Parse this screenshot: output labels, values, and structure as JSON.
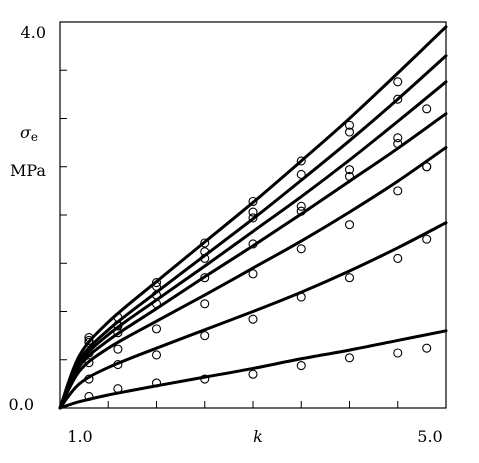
{
  "chart_data": {
    "type": "scatter",
    "title": "",
    "xlabel": "k",
    "ylabel_symbol": "σ",
    "ylabel_subscript": "e",
    "ylabel_unit": "MPa",
    "xlim": [
      1.0,
      5.0
    ],
    "ylim": [
      0.0,
      4.0
    ],
    "x_tick_labels": [
      {
        "value": 1.0,
        "label": "1.0"
      },
      {
        "value": 5.0,
        "label": "5.0"
      }
    ],
    "y_tick_labels": [
      {
        "value": 0.0,
        "label": "0.0"
      },
      {
        "value": 4.0,
        "label": "4.0"
      }
    ],
    "x_minor_ticks": [
      1.5,
      2.0,
      2.5,
      3.0,
      3.5,
      4.0,
      4.5
    ],
    "y_minor_ticks": [
      0.5,
      1.0,
      1.5,
      2.0,
      2.5,
      3.0,
      3.5
    ],
    "grid": false,
    "series": [
      {
        "curve": [
          [
            1.0,
            0.0
          ],
          [
            1.2,
            0.065
          ],
          [
            1.5,
            0.135
          ],
          [
            2.0,
            0.23
          ],
          [
            2.5,
            0.32
          ],
          [
            3.0,
            0.41
          ],
          [
            3.5,
            0.51
          ],
          [
            4.0,
            0.6
          ],
          [
            4.5,
            0.7
          ],
          [
            5.0,
            0.8
          ]
        ],
        "points": [
          [
            1.3,
            0.12
          ],
          [
            1.6,
            0.2
          ],
          [
            2.0,
            0.26
          ],
          [
            2.5,
            0.3
          ],
          [
            3.0,
            0.35
          ],
          [
            3.5,
            0.44
          ],
          [
            4.0,
            0.52
          ],
          [
            4.5,
            0.57
          ],
          [
            4.8,
            0.62
          ]
        ]
      },
      {
        "curve": [
          [
            1.0,
            0.0
          ],
          [
            1.2,
            0.25
          ],
          [
            1.5,
            0.42
          ],
          [
            2.0,
            0.62
          ],
          [
            2.5,
            0.81
          ],
          [
            3.0,
            1.0
          ],
          [
            3.5,
            1.2
          ],
          [
            4.0,
            1.42
          ],
          [
            4.5,
            1.66
          ],
          [
            5.0,
            1.92
          ]
        ],
        "points": [
          [
            1.3,
            0.3
          ],
          [
            1.6,
            0.45
          ],
          [
            2.0,
            0.55
          ],
          [
            2.5,
            0.75
          ],
          [
            3.0,
            0.92
          ],
          [
            3.5,
            1.15
          ],
          [
            4.0,
            1.35
          ],
          [
            4.5,
            1.55
          ],
          [
            4.8,
            1.75
          ]
        ]
      },
      {
        "curve": [
          [
            1.0,
            0.0
          ],
          [
            1.2,
            0.38
          ],
          [
            1.5,
            0.62
          ],
          [
            2.0,
            0.9
          ],
          [
            2.5,
            1.17
          ],
          [
            3.0,
            1.45
          ],
          [
            3.5,
            1.73
          ],
          [
            4.0,
            2.03
          ],
          [
            4.5,
            2.35
          ],
          [
            5.0,
            2.7
          ]
        ],
        "points": [
          [
            1.3,
            0.47
          ],
          [
            1.6,
            0.61
          ],
          [
            2.0,
            0.82
          ],
          [
            2.5,
            1.08
          ],
          [
            3.0,
            1.39
          ],
          [
            3.5,
            1.65
          ],
          [
            4.0,
            1.9
          ],
          [
            4.5,
            2.25
          ],
          [
            4.8,
            2.5
          ]
        ]
      },
      {
        "curve": [
          [
            1.0,
            0.0
          ],
          [
            1.2,
            0.46
          ],
          [
            1.5,
            0.76
          ],
          [
            2.0,
            1.12
          ],
          [
            2.5,
            1.47
          ],
          [
            3.0,
            1.83
          ],
          [
            3.5,
            2.19
          ],
          [
            4.0,
            2.57
          ],
          [
            4.5,
            2.97
          ],
          [
            5.0,
            3.38
          ]
        ],
        "points": [
          [
            1.3,
            0.57
          ],
          [
            1.6,
            0.78
          ],
          [
            2.0,
            1.08
          ],
          [
            2.5,
            1.35
          ],
          [
            3.0,
            1.7
          ],
          [
            3.5,
            2.04
          ],
          [
            4.0,
            2.4
          ],
          [
            4.5,
            2.8
          ],
          [
            4.8,
            3.1
          ]
        ]
      },
      {
        "curve": [
          [
            1.0,
            0.0
          ],
          [
            1.2,
            0.54
          ],
          [
            1.5,
            0.89
          ],
          [
            2.0,
            1.31
          ],
          [
            2.5,
            1.72
          ],
          [
            3.0,
            2.13
          ],
          [
            3.5,
            2.56
          ],
          [
            4.0,
            3.0
          ],
          [
            4.5,
            3.47
          ],
          [
            5.0,
            3.95
          ]
        ],
        "points": [
          [
            1.3,
            0.68
          ],
          [
            1.6,
            0.85
          ],
          [
            2.0,
            1.17
          ],
          [
            2.5,
            1.62
          ],
          [
            3.0,
            2.03
          ],
          [
            3.5,
            2.42
          ],
          [
            4.0,
            2.86
          ],
          [
            4.5,
            3.2
          ]
        ]
      },
      {
        "curve": [
          [
            1.0,
            0.0
          ],
          [
            1.2,
            0.49
          ],
          [
            1.5,
            0.81
          ],
          [
            2.0,
            1.2
          ],
          [
            2.5,
            1.58
          ],
          [
            3.0,
            1.96
          ],
          [
            3.5,
            2.36
          ],
          [
            4.0,
            2.77
          ],
          [
            4.5,
            3.2
          ],
          [
            5.0,
            3.65
          ]
        ],
        "points": [
          [
            1.3,
            0.7
          ],
          [
            1.6,
            0.94
          ],
          [
            2.0,
            1.26
          ],
          [
            2.5,
            1.55
          ],
          [
            3.0,
            2.14
          ],
          [
            3.5,
            2.56
          ],
          [
            4.0,
            2.93
          ],
          [
            4.5,
            3.38
          ]
        ]
      },
      {
        "curve": [
          [
            1.0,
            0.0
          ],
          [
            1.2,
            0.43
          ],
          [
            1.5,
            0.7
          ],
          [
            2.0,
            1.03
          ],
          [
            2.5,
            1.36
          ],
          [
            3.0,
            1.68
          ],
          [
            3.5,
            2.01
          ],
          [
            4.0,
            2.35
          ],
          [
            4.5,
            2.69
          ],
          [
            5.0,
            3.05
          ]
        ],
        "points": [
          [
            1.3,
            0.73
          ],
          [
            1.6,
            0.86
          ],
          [
            2.0,
            1.3
          ],
          [
            2.5,
            1.71
          ],
          [
            3.0,
            1.97
          ],
          [
            3.5,
            2.09
          ],
          [
            4.0,
            2.47
          ],
          [
            4.5,
            2.74
          ],
          [
            4.8,
            2.5
          ]
        ]
      }
    ]
  }
}
